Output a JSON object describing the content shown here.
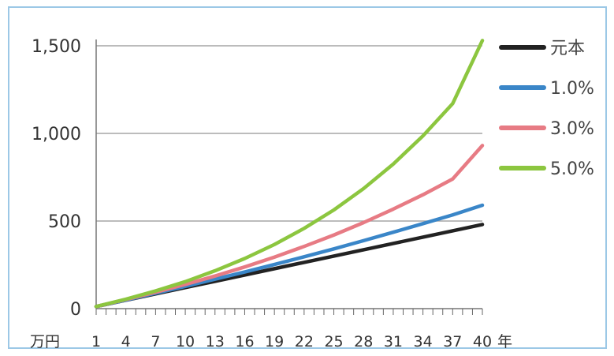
{
  "chart_data": {
    "type": "line",
    "title": "",
    "xlabel": "年",
    "ylabel": "万円",
    "y_unit": "万円",
    "x_unit": "年",
    "xlim": [
      1,
      40
    ],
    "ylim": [
      0,
      1500
    ],
    "y_ticks": [
      0,
      500,
      1000,
      1500
    ],
    "y_tick_labels": [
      "0",
      "500",
      "1,000",
      "1,500"
    ],
    "x_ticks": [
      1,
      4,
      7,
      10,
      13,
      16,
      19,
      22,
      25,
      28,
      31,
      34,
      37,
      40
    ],
    "x_tick_labels": [
      "1",
      "4",
      "7",
      "10",
      "13",
      "16",
      "19",
      "22",
      "25",
      "28",
      "31",
      "34",
      "37",
      "40"
    ],
    "grid": true,
    "legend_position": "right",
    "x": [
      1,
      4,
      7,
      10,
      13,
      16,
      19,
      22,
      25,
      28,
      31,
      34,
      37,
      40
    ],
    "series": [
      {
        "name": "元本",
        "color": "#222222",
        "values": [
          12,
          48,
          84,
          120,
          156,
          192,
          228,
          264,
          300,
          336,
          372,
          408,
          444,
          480
        ]
      },
      {
        "name": "1.0%",
        "color": "#3a86c8",
        "values": [
          12,
          49,
          88,
          127,
          168,
          209,
          252,
          296,
          341,
          388,
          436,
          485,
          535,
          590
        ]
      },
      {
        "name": "3.0%",
        "color": "#e77b84",
        "values": [
          12,
          52,
          94,
          138,
          186,
          238,
          294,
          355,
          420,
          491,
          568,
          650,
          740,
          931
        ]
      },
      {
        "name": "5.0%",
        "color": "#8cc63f",
        "values": [
          12,
          54,
          101,
          154,
          216,
          286,
          366,
          458,
          563,
          685,
          825,
          986,
          1170,
          1530
        ]
      }
    ]
  }
}
